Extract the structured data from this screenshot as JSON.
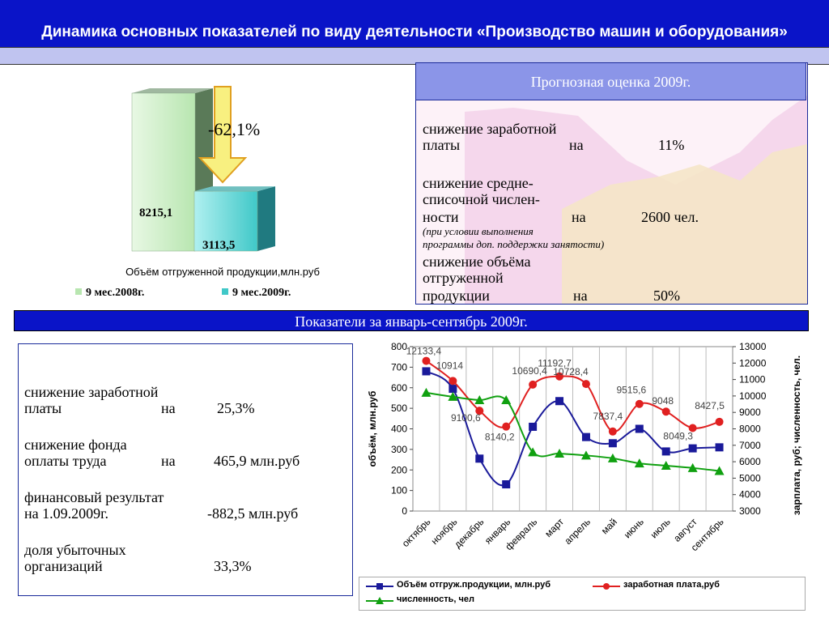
{
  "header": {
    "title": "Динамика основных показателей по виду деятельности «Производство машин и оборудования»"
  },
  "forecast": {
    "title": "Прогнозная оценка 2009г.",
    "items": [
      {
        "lines": [
          "снижение заработной"
        ],
        "last": "платы",
        "op": "на",
        "value": "11%"
      },
      {
        "lines": [
          "снижение средне-",
          "списочной  числен-"
        ],
        "last": "ности",
        "op": "на",
        "value": "2600 чел.",
        "note": [
          "(при условии выполнения",
          "программы доп. поддержки занятости)"
        ]
      },
      {
        "lines": [
          "снижение объёма",
          "отгруженной"
        ],
        "last": "продукции",
        "op": "на",
        "value": "50%"
      }
    ]
  },
  "period": {
    "title": "Показатели за январь-сентябрь 2009г."
  },
  "left_panel": {
    "items": [
      {
        "line1": "снижение заработной",
        "line2a": "платы",
        "line2b": "на",
        "line2c": "25,3%"
      },
      {
        "line1": "снижение фонда",
        "line2a": "оплаты  труда",
        "line2b": "на",
        "line2c": "465,9 млн.руб"
      },
      {
        "line1": "финансовый результат",
        "line2a": "на 1.09.2009г.",
        "line2b": "",
        "line2c": "-882,5 млн.руб"
      },
      {
        "line1": "доля убыточных",
        "line2a": "организаций",
        "line2b": "",
        "line2c": "33,3%"
      }
    ]
  },
  "colors": {
    "bar2008": "#b8e6b0",
    "bar2009": "#40c8c8",
    "series1": "#1a1a9a",
    "series2": "#e02020",
    "series3": "#10a010",
    "arrow": "#f8f080"
  },
  "chart_data": [
    {
      "type": "bar",
      "categories": [
        "9 мес.2008г.",
        "9 мес.2009г."
      ],
      "values": [
        8215.1,
        3113.5
      ],
      "value_labels": [
        "8215,1",
        "3113,5"
      ],
      "change_label": "-62,1%",
      "xlabel": "Объём отгруженной продукции,млн.руб",
      "legend": [
        "9 мес.2008г.",
        "9 мес.2009г."
      ],
      "legend_position": "bottom"
    },
    {
      "type": "line",
      "categories": [
        "октябрь",
        "ноябрь",
        "декабрь",
        "январь",
        "февраль",
        "март",
        "апрель",
        "май",
        "июнь",
        "июль",
        "август",
        "сентябрь"
      ],
      "ylabel": "объём, млн.руб",
      "ylabel_right": "зарплата, руб; численность, чел.",
      "ylim": [
        0,
        800
      ],
      "ylim_right": [
        3000,
        13000
      ],
      "yticks": [
        "0",
        "100",
        "200",
        "300",
        "400",
        "500",
        "600",
        "700",
        "800"
      ],
      "yticks_right": [
        "3000",
        "4000",
        "5000",
        "6000",
        "7000",
        "8000",
        "9000",
        "10000",
        "11000",
        "12000",
        "13000"
      ],
      "grid": true,
      "legend_position": "bottom",
      "series": [
        {
          "name": "Объём отгруж.продукции, млн.руб",
          "axis": "left",
          "values": [
            680,
            595,
            255,
            130,
            410,
            535,
            360,
            330,
            400,
            290,
            305,
            310
          ]
        },
        {
          "name": "заработная плата,руб",
          "axis": "right",
          "values": [
            12133.4,
            10914,
            9100.6,
            8140.2,
            10690.4,
            11192.7,
            10728.4,
            7837.4,
            9515.6,
            9048,
            8049.3,
            8427.5
          ],
          "labels": [
            "12133,4",
            "10914",
            "9100,6",
            "8140,2",
            "10690,4",
            "11192,7",
            "10728,4",
            "7837,4",
            "9515,6",
            "9048",
            "8049,3",
            "8427,5"
          ]
        },
        {
          "name": "численность, чел",
          "axis": "right",
          "values": [
            10200,
            9950,
            9750,
            9750,
            6580,
            6500,
            6380,
            6210,
            5900,
            5760,
            5620,
            5440
          ]
        }
      ]
    }
  ]
}
